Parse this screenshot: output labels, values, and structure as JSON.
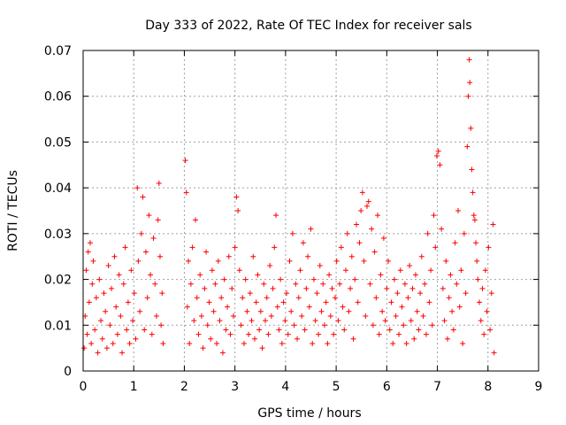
{
  "chart_data": {
    "type": "scatter",
    "title": "Day 333 of 2022, Rate Of TEC Index for receiver sals",
    "xlabel": "GPS time / hours",
    "ylabel": "ROTI / TECUs",
    "xlim": [
      0,
      9
    ],
    "ylim": [
      0,
      0.07
    ],
    "x_ticks": [
      "0",
      "1",
      "2",
      "3",
      "4",
      "5",
      "6",
      "7",
      "8",
      "9"
    ],
    "y_ticks": [
      "0",
      "0.01",
      "0.02",
      "0.03",
      "0.04",
      "0.05",
      "0.06",
      "0.07"
    ],
    "grid": true,
    "marker": "plus",
    "color": "#ff0000",
    "series": [
      {
        "points": [
          [
            0.02,
            0.005
          ],
          [
            0.04,
            0.012
          ],
          [
            0.06,
            0.022
          ],
          [
            0.08,
            0.008
          ],
          [
            0.1,
            0.026
          ],
          [
            0.12,
            0.015
          ],
          [
            0.14,
            0.028
          ],
          [
            0.16,
            0.006
          ],
          [
            0.18,
            0.019
          ],
          [
            0.2,
            0.024
          ],
          [
            0.23,
            0.009
          ],
          [
            0.26,
            0.016
          ],
          [
            0.29,
            0.004
          ],
          [
            0.32,
            0.02
          ],
          [
            0.35,
            0.011
          ],
          [
            0.38,
            0.007
          ],
          [
            0.41,
            0.017
          ],
          [
            0.44,
            0.013
          ],
          [
            0.47,
            0.005
          ],
          [
            0.5,
            0.023
          ],
          [
            0.53,
            0.01
          ],
          [
            0.56,
            0.018
          ],
          [
            0.59,
            0.006
          ],
          [
            0.62,
            0.025
          ],
          [
            0.65,
            0.014
          ],
          [
            0.68,
            0.008
          ],
          [
            0.71,
            0.021
          ],
          [
            0.74,
            0.012
          ],
          [
            0.77,
            0.004
          ],
          [
            0.8,
            0.019
          ],
          [
            0.83,
            0.027
          ],
          [
            0.86,
            0.009
          ],
          [
            0.89,
            0.015
          ],
          [
            0.92,
            0.006
          ],
          [
            0.95,
            0.022
          ],
          [
            0.98,
            0.011
          ],
          [
            1.01,
            0.017
          ],
          [
            1.04,
            0.007
          ],
          [
            1.07,
            0.04
          ],
          [
            1.09,
            0.024
          ],
          [
            1.12,
            0.013
          ],
          [
            1.15,
            0.03
          ],
          [
            1.18,
            0.038
          ],
          [
            1.21,
            0.009
          ],
          [
            1.24,
            0.026
          ],
          [
            1.27,
            0.016
          ],
          [
            1.3,
            0.034
          ],
          [
            1.33,
            0.021
          ],
          [
            1.36,
            0.008
          ],
          [
            1.39,
            0.029
          ],
          [
            1.42,
            0.019
          ],
          [
            1.45,
            0.012
          ],
          [
            1.48,
            0.033
          ],
          [
            1.5,
            0.041
          ],
          [
            1.52,
            0.025
          ],
          [
            1.54,
            0.01
          ],
          [
            1.56,
            0.017
          ],
          [
            1.58,
            0.006
          ],
          [
            2.02,
            0.046
          ],
          [
            2.04,
            0.039
          ],
          [
            2.06,
            0.014
          ],
          [
            2.08,
            0.024
          ],
          [
            2.1,
            0.006
          ],
          [
            2.13,
            0.019
          ],
          [
            2.16,
            0.027
          ],
          [
            2.19,
            0.011
          ],
          [
            2.22,
            0.033
          ],
          [
            2.25,
            0.016
          ],
          [
            2.28,
            0.008
          ],
          [
            2.31,
            0.021
          ],
          [
            2.34,
            0.012
          ],
          [
            2.37,
            0.005
          ],
          [
            2.4,
            0.018
          ],
          [
            2.43,
            0.026
          ],
          [
            2.46,
            0.01
          ],
          [
            2.49,
            0.015
          ],
          [
            2.52,
            0.007
          ],
          [
            2.55,
            0.022
          ],
          [
            2.58,
            0.013
          ],
          [
            2.61,
            0.019
          ],
          [
            2.64,
            0.006
          ],
          [
            2.67,
            0.024
          ],
          [
            2.7,
            0.011
          ],
          [
            2.73,
            0.016
          ],
          [
            2.76,
            0.004
          ],
          [
            2.79,
            0.02
          ],
          [
            2.82,
            0.009
          ],
          [
            2.85,
            0.014
          ],
          [
            2.88,
            0.025
          ],
          [
            2.91,
            0.008
          ],
          [
            2.94,
            0.018
          ],
          [
            2.97,
            0.012
          ],
          [
            3.0,
            0.027
          ],
          [
            3.03,
            0.038
          ],
          [
            3.06,
            0.035
          ],
          [
            3.09,
            0.022
          ],
          [
            3.12,
            0.01
          ],
          [
            3.15,
            0.016
          ],
          [
            3.18,
            0.006
          ],
          [
            3.21,
            0.02
          ],
          [
            3.24,
            0.013
          ],
          [
            3.27,
            0.008
          ],
          [
            3.3,
            0.017
          ],
          [
            3.33,
            0.011
          ],
          [
            3.36,
            0.025
          ],
          [
            3.39,
            0.007
          ],
          [
            3.42,
            0.015
          ],
          [
            3.45,
            0.021
          ],
          [
            3.48,
            0.009
          ],
          [
            3.51,
            0.013
          ],
          [
            3.54,
            0.005
          ],
          [
            3.57,
            0.019
          ],
          [
            3.6,
            0.011
          ],
          [
            3.63,
            0.016
          ],
          [
            3.66,
            0.008
          ],
          [
            3.69,
            0.023
          ],
          [
            3.72,
            0.012
          ],
          [
            3.75,
            0.018
          ],
          [
            3.78,
            0.027
          ],
          [
            3.81,
            0.034
          ],
          [
            3.84,
            0.014
          ],
          [
            3.87,
            0.009
          ],
          [
            3.9,
            0.02
          ],
          [
            3.93,
            0.006
          ],
          [
            3.96,
            0.015
          ],
          [
            3.99,
            0.011
          ],
          [
            4.02,
            0.017
          ],
          [
            4.05,
            0.008
          ],
          [
            4.08,
            0.024
          ],
          [
            4.11,
            0.013
          ],
          [
            4.14,
            0.03
          ],
          [
            4.17,
            0.01
          ],
          [
            4.2,
            0.019
          ],
          [
            4.23,
            0.007
          ],
          [
            4.26,
            0.016
          ],
          [
            4.29,
            0.022
          ],
          [
            4.32,
            0.012
          ],
          [
            4.35,
            0.028
          ],
          [
            4.38,
            0.009
          ],
          [
            4.41,
            0.018
          ],
          [
            4.44,
            0.025
          ],
          [
            4.47,
            0.014
          ],
          [
            4.5,
            0.031
          ],
          [
            4.53,
            0.006
          ],
          [
            4.56,
            0.02
          ],
          [
            4.59,
            0.011
          ],
          [
            4.62,
            0.017
          ],
          [
            4.65,
            0.008
          ],
          [
            4.68,
            0.023
          ],
          [
            4.71,
            0.013
          ],
          [
            4.74,
            0.019
          ],
          [
            4.77,
            0.01
          ],
          [
            4.8,
            0.015
          ],
          [
            4.83,
            0.006
          ],
          [
            4.86,
            0.021
          ],
          [
            4.89,
            0.012
          ],
          [
            4.92,
            0.018
          ],
          [
            4.95,
            0.008
          ],
          [
            4.98,
            0.016
          ],
          [
            5.01,
            0.024
          ],
          [
            5.04,
            0.011
          ],
          [
            5.07,
            0.019
          ],
          [
            5.1,
            0.027
          ],
          [
            5.13,
            0.014
          ],
          [
            5.16,
            0.009
          ],
          [
            5.19,
            0.022
          ],
          [
            5.22,
            0.03
          ],
          [
            5.25,
            0.013
          ],
          [
            5.28,
            0.018
          ],
          [
            5.31,
            0.025
          ],
          [
            5.34,
            0.007
          ],
          [
            5.37,
            0.02
          ],
          [
            5.4,
            0.032
          ],
          [
            5.43,
            0.015
          ],
          [
            5.46,
            0.028
          ],
          [
            5.49,
            0.035
          ],
          [
            5.52,
            0.039
          ],
          [
            5.55,
            0.024
          ],
          [
            5.58,
            0.012
          ],
          [
            5.61,
            0.036
          ],
          [
            5.64,
            0.037
          ],
          [
            5.67,
            0.019
          ],
          [
            5.7,
            0.031
          ],
          [
            5.73,
            0.01
          ],
          [
            5.76,
            0.026
          ],
          [
            5.79,
            0.016
          ],
          [
            5.82,
            0.034
          ],
          [
            5.85,
            0.008
          ],
          [
            5.88,
            0.021
          ],
          [
            5.91,
            0.013
          ],
          [
            5.94,
            0.029
          ],
          [
            5.97,
            0.011
          ],
          [
            6.0,
            0.018
          ],
          [
            6.03,
            0.024
          ],
          [
            6.06,
            0.009
          ],
          [
            6.09,
            0.015
          ],
          [
            6.12,
            0.006
          ],
          [
            6.15,
            0.02
          ],
          [
            6.18,
            0.012
          ],
          [
            6.21,
            0.017
          ],
          [
            6.24,
            0.008
          ],
          [
            6.27,
            0.022
          ],
          [
            6.3,
            0.014
          ],
          [
            6.33,
            0.01
          ],
          [
            6.36,
            0.019
          ],
          [
            6.39,
            0.006
          ],
          [
            6.42,
            0.016
          ],
          [
            6.45,
            0.023
          ],
          [
            6.48,
            0.011
          ],
          [
            6.51,
            0.018
          ],
          [
            6.54,
            0.007
          ],
          [
            6.57,
            0.021
          ],
          [
            6.6,
            0.013
          ],
          [
            6.63,
            0.009
          ],
          [
            6.66,
            0.017
          ],
          [
            6.69,
            0.025
          ],
          [
            6.72,
            0.012
          ],
          [
            6.75,
            0.019
          ],
          [
            6.78,
            0.008
          ],
          [
            6.81,
            0.03
          ],
          [
            6.84,
            0.015
          ],
          [
            6.87,
            0.022
          ],
          [
            6.9,
            0.01
          ],
          [
            6.93,
            0.034
          ],
          [
            6.96,
            0.027
          ],
          [
            6.99,
            0.047
          ],
          [
            7.02,
            0.048
          ],
          [
            7.05,
            0.045
          ],
          [
            7.08,
            0.031
          ],
          [
            7.11,
            0.018
          ],
          [
            7.14,
            0.011
          ],
          [
            7.17,
            0.024
          ],
          [
            7.2,
            0.007
          ],
          [
            7.23,
            0.016
          ],
          [
            7.26,
            0.021
          ],
          [
            7.29,
            0.013
          ],
          [
            7.32,
            0.009
          ],
          [
            7.35,
            0.028
          ],
          [
            7.38,
            0.019
          ],
          [
            7.41,
            0.035
          ],
          [
            7.44,
            0.014
          ],
          [
            7.47,
            0.022
          ],
          [
            7.5,
            0.006
          ],
          [
            7.53,
            0.03
          ],
          [
            7.56,
            0.017
          ],
          [
            7.59,
            0.049
          ],
          [
            7.61,
            0.06
          ],
          [
            7.63,
            0.068
          ],
          [
            7.64,
            0.063
          ],
          [
            7.66,
            0.053
          ],
          [
            7.68,
            0.044
          ],
          [
            7.7,
            0.039
          ],
          [
            7.72,
            0.034
          ],
          [
            7.74,
            0.033
          ],
          [
            7.76,
            0.028
          ],
          [
            7.78,
            0.024
          ],
          [
            7.8,
            0.02
          ],
          [
            7.83,
            0.015
          ],
          [
            7.86,
            0.011
          ],
          [
            7.89,
            0.018
          ],
          [
            7.92,
            0.008
          ],
          [
            7.95,
            0.022
          ],
          [
            7.98,
            0.013
          ],
          [
            8.01,
            0.027
          ],
          [
            8.04,
            0.009
          ],
          [
            8.07,
            0.017
          ],
          [
            8.1,
            0.032
          ],
          [
            8.12,
            0.004
          ]
        ]
      }
    ]
  }
}
